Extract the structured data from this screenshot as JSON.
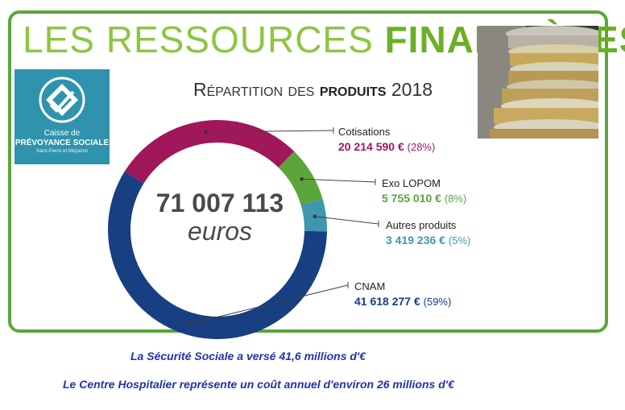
{
  "header": {
    "title_light": "LES RESSOURCES",
    "title_bold": "FINANCIÈRES",
    "subtitle_prefix": "Répartition des",
    "subtitle_bold": "produits",
    "subtitle_year": "2018"
  },
  "logo": {
    "line1": "Caisse de",
    "line2": "PRÉVOYANCE SOCIALE",
    "line3": "Saint-Pierre et Miquelon"
  },
  "center": {
    "total": "71 007 113",
    "unit": "euros"
  },
  "chart_data": {
    "type": "pie",
    "title": "Répartition des produits 2018",
    "total": 71007113,
    "unit": "euros",
    "slices": [
      {
        "name": "Cotisations",
        "value": 20214590,
        "value_label": "20 214 590 €",
        "percent": 28,
        "percent_label": "(28%)",
        "color": "#a0175a"
      },
      {
        "name": "Exo LOPOM",
        "value": 5755010,
        "value_label": "5 755 010 €",
        "percent": 8,
        "percent_label": "(8%)",
        "color": "#5aa63a"
      },
      {
        "name": "Autres produits",
        "value": 3419236,
        "value_label": "3 419 236 €",
        "percent": 5,
        "percent_label": "(5%)",
        "color": "#3f96ad"
      },
      {
        "name": "CNAM",
        "value": 41618277,
        "value_label": "41 618 277 €",
        "percent": 59,
        "percent_label": "(59%)",
        "color": "#173f82"
      }
    ]
  },
  "notes": {
    "line1": "La Sécurité Sociale a versé 41,6 millions d'€",
    "line2": "Le Centre Hospitalier représente un coût annuel d'environ 26 millions d'€"
  },
  "colors": {
    "frame": "#5aa63a",
    "note_text": "#2233aa"
  }
}
